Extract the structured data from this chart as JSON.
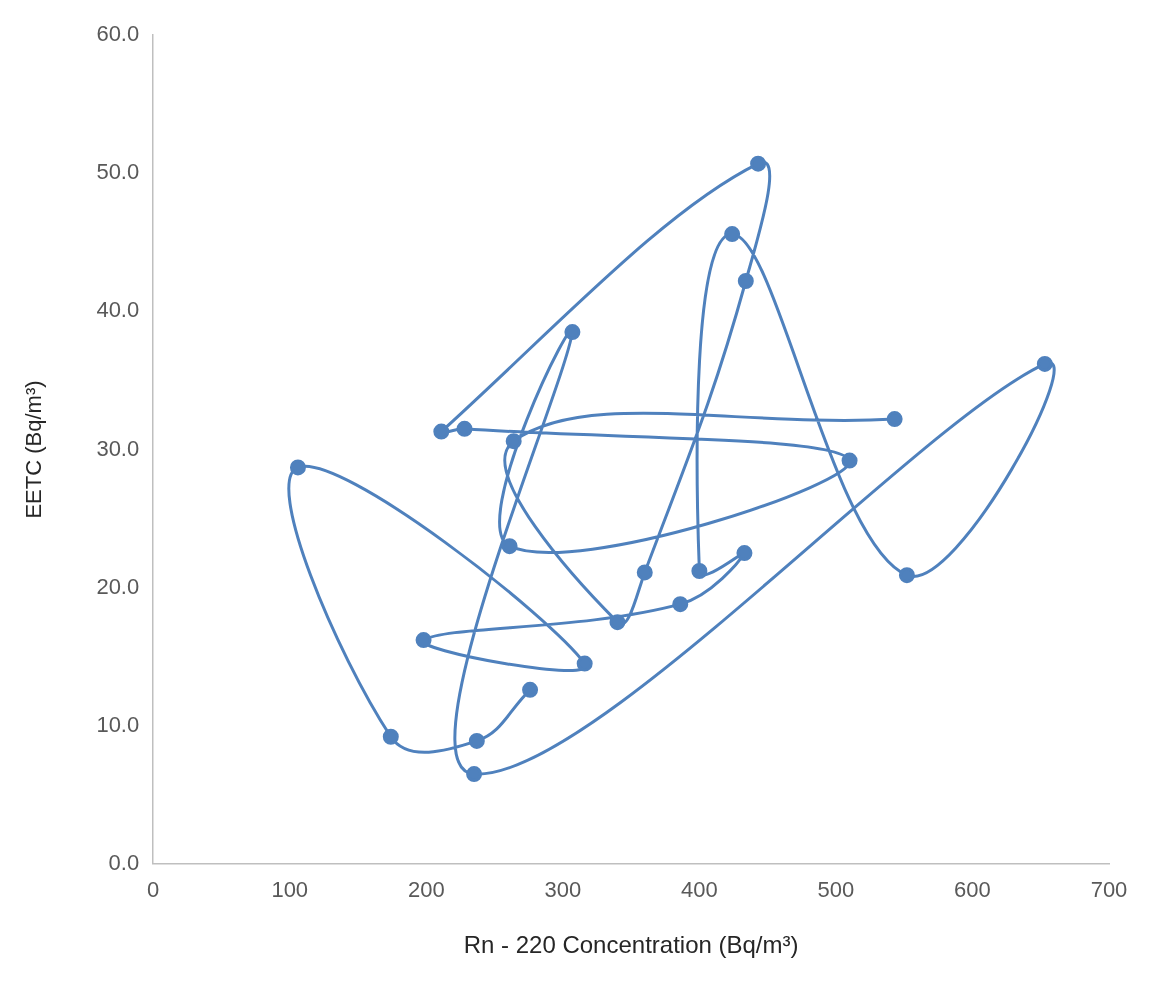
{
  "chart_data": {
    "type": "line",
    "xlabel": "Rn - 220 Concentration (Bq/m³)",
    "ylabel": "EETC (Bq/m³)",
    "xlim": [
      0,
      700
    ],
    "xticks": [
      0,
      100,
      200,
      300,
      400,
      500,
      600,
      700
    ],
    "ylim": [
      0,
      60
    ],
    "yticks": [
      {
        "value": 0,
        "label": "0.0"
      },
      {
        "value": 10,
        "label": "10.0"
      },
      {
        "value": 20,
        "label": "20.0"
      },
      {
        "value": 30,
        "label": "30.0"
      },
      {
        "value": 40,
        "label": "40.0"
      },
      {
        "value": 50,
        "label": "50.0"
      },
      {
        "value": 60,
        "label": "60.0"
      }
    ],
    "grid": false,
    "legend": false,
    "marker": "circle",
    "line_style": "solid",
    "series": [
      {
        "color": "#4f81bd",
        "x": [
          543,
          264,
          340,
          360,
          434,
          443,
          211,
          228,
          510,
          261,
          307,
          235,
          653,
          552,
          424,
          400,
          433,
          386,
          198,
          316,
          106,
          174,
          237,
          276
        ],
        "values": [
          32.2,
          30.6,
          17.5,
          21.1,
          42.2,
          50.7,
          31.3,
          31.5,
          29.2,
          23.0,
          38.5,
          6.5,
          36.2,
          20.9,
          45.6,
          21.2,
          22.5,
          18.8,
          16.2,
          14.5,
          28.7,
          9.2,
          8.9,
          12.6
        ]
      }
    ]
  }
}
